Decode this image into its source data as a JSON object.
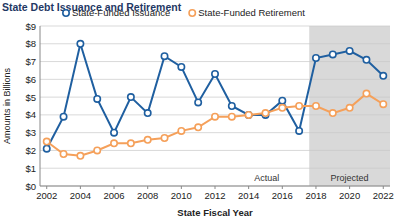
{
  "chart_data": {
    "type": "line",
    "title": "State Debt Issuance and Retirement",
    "x_label": "State Fiscal Year",
    "y_label": "Amounts in Billions",
    "x": [
      2002,
      2003,
      2004,
      2005,
      2006,
      2007,
      2008,
      2009,
      2010,
      2011,
      2012,
      2013,
      2014,
      2015,
      2016,
      2017,
      2018,
      2019,
      2020,
      2021,
      2022
    ],
    "series": [
      {
        "name": "State-Funded Issuance",
        "color": "#1f5fa0",
        "marker": "circle",
        "values": [
          2.1,
          3.9,
          8.0,
          4.9,
          3.0,
          5.0,
          4.1,
          7.3,
          6.7,
          4.7,
          6.3,
          4.5,
          4.0,
          4.0,
          4.8,
          3.1,
          7.2,
          7.4,
          7.6,
          7.1,
          6.2
        ]
      },
      {
        "name": "State-Funded Retirement",
        "color": "#f5a05a",
        "marker": "circle",
        "values": [
          2.5,
          1.8,
          1.7,
          2.0,
          2.4,
          2.4,
          2.6,
          2.7,
          3.1,
          3.3,
          3.9,
          3.9,
          4.0,
          4.1,
          4.4,
          4.5,
          4.5,
          4.1,
          4.4,
          5.2,
          4.6
        ]
      }
    ],
    "xlim": [
      2001.6,
      2022.4
    ],
    "xticks": [
      2002,
      2004,
      2006,
      2008,
      2010,
      2012,
      2014,
      2016,
      2018,
      2020,
      2022
    ],
    "ylim": [
      0,
      9
    ],
    "yticks": [
      {
        "value": 0,
        "label": "$0"
      },
      {
        "value": 1,
        "label": "$1"
      },
      {
        "value": 2,
        "label": "$2"
      },
      {
        "value": 3,
        "label": "$3"
      },
      {
        "value": 4,
        "label": "$4"
      },
      {
        "value": 5,
        "label": "$5"
      },
      {
        "value": 6,
        "label": "$6"
      },
      {
        "value": 7,
        "label": "$7"
      },
      {
        "value": 8,
        "label": "$8"
      },
      {
        "value": 9,
        "label": "$9"
      }
    ],
    "grid": true,
    "legend": "top",
    "regions": [
      {
        "label": "Actual",
        "from": 2001.6,
        "to": 2017.6,
        "shaded": false
      },
      {
        "label": "Projected",
        "from": 2017.6,
        "to": 2022.4,
        "shaded": true
      }
    ]
  }
}
